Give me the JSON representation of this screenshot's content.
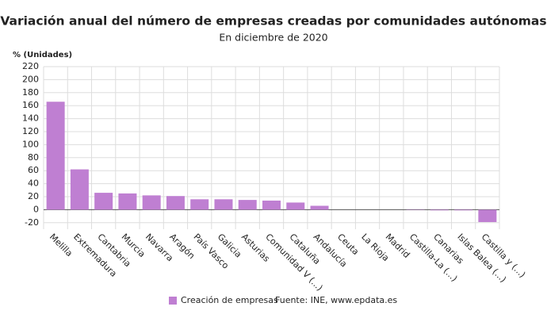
{
  "chart_data": {
    "type": "bar",
    "title": "Variación anual del número de empresas creadas por comunidades autónomas",
    "subtitle": "En diciembre de 2020",
    "y_axis_label": "% (Unidades)",
    "source": "Fuente: INE, www.epdata.es",
    "categories": [
      "Melilla",
      "Extremadura",
      "Cantabria",
      "Murcia",
      "Navarra",
      "Aragón",
      "País Vasco",
      "Galicia",
      "Asturias",
      "Comunidad V (...)",
      "Cataluña",
      "Andalucía",
      "Ceuta",
      "La Rioja",
      "Madrid",
      "Castilla-La (...)",
      "Canarias",
      "Islas Balea (...)",
      "Castilla y (...)"
    ],
    "series": [
      {
        "name": "Creación de empresas",
        "color": "#bf7fd2",
        "values": [
          166,
          62,
          26,
          25,
          22,
          21,
          16,
          16,
          15,
          14,
          11,
          6,
          0,
          0,
          0,
          -0.5,
          -1,
          -1,
          -19
        ]
      }
    ],
    "ylim": [
      -30,
      220
    ],
    "yticks": [
      -20,
      0,
      20,
      40,
      60,
      80,
      100,
      120,
      140,
      160,
      180,
      200,
      220
    ],
    "grid": true
  }
}
